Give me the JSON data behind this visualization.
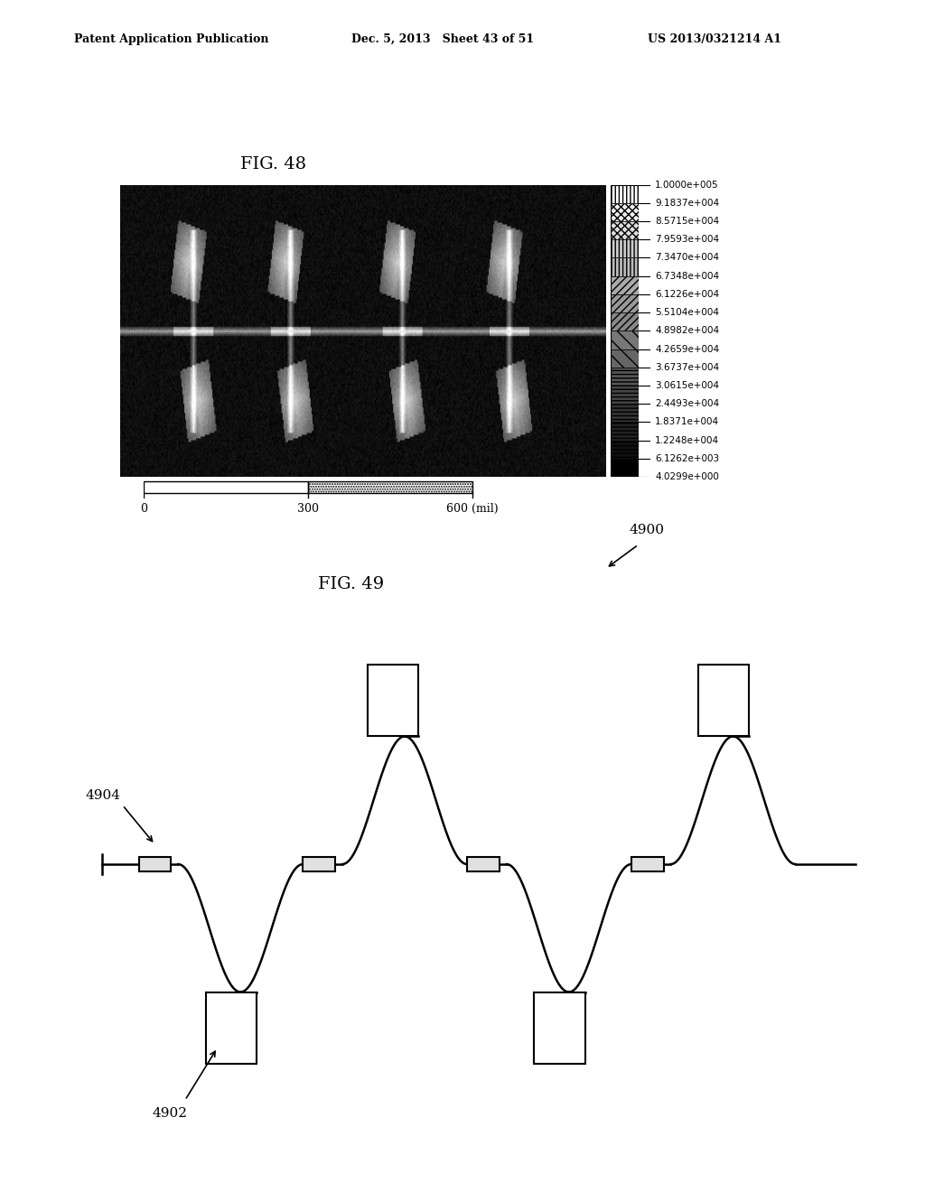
{
  "header_left": "Patent Application Publication",
  "header_center": "Dec. 5, 2013   Sheet 43 of 51",
  "header_right": "US 2013/0321214 A1",
  "fig48_title": "FIG. 48",
  "fig49_title": "FIG. 49",
  "colorbar_labels": [
    "1.0000e+005",
    "9.1837e+004",
    "8.5715e+004",
    "7.9593e+004",
    "7.3470e+004",
    "6.7348e+004",
    "6.1226e+004",
    "5.5104e+004",
    "4.8982e+004",
    "4.2659e+004",
    "3.6737e+004",
    "3.0615e+004",
    "2.4493e+004",
    "1.8371e+004",
    "1.2248e+004",
    "6.1262e+003",
    "4.0299e+000"
  ],
  "scalebar_labels": [
    "0",
    "300",
    "600 (mil)"
  ],
  "label_4900": "4900",
  "label_4904": "4904",
  "label_4902": "4902",
  "background_color": "#ffffff",
  "text_color": "#000000",
  "cb_hatch_patterns": [
    "||||",
    "xxxx",
    "xxxx",
    "||||",
    "||||",
    "\\\\\\\\",
    "\\\\\\\\",
    "\\\\\\\\",
    "\\\\\\\\",
    "\\\\\\\\",
    "----",
    "----",
    "----",
    "----",
    "----",
    "----",
    ""
  ],
  "cb_face_colors": [
    "#ffffff",
    "#dddddd",
    "#bbbbbb",
    "#aaaaaa",
    "#999999",
    "#888888",
    "#777777",
    "#666666",
    "#555555",
    "#444444",
    "#333333",
    "#222222",
    "#181818",
    "#101010",
    "#080808",
    "#000000",
    "#000000"
  ]
}
